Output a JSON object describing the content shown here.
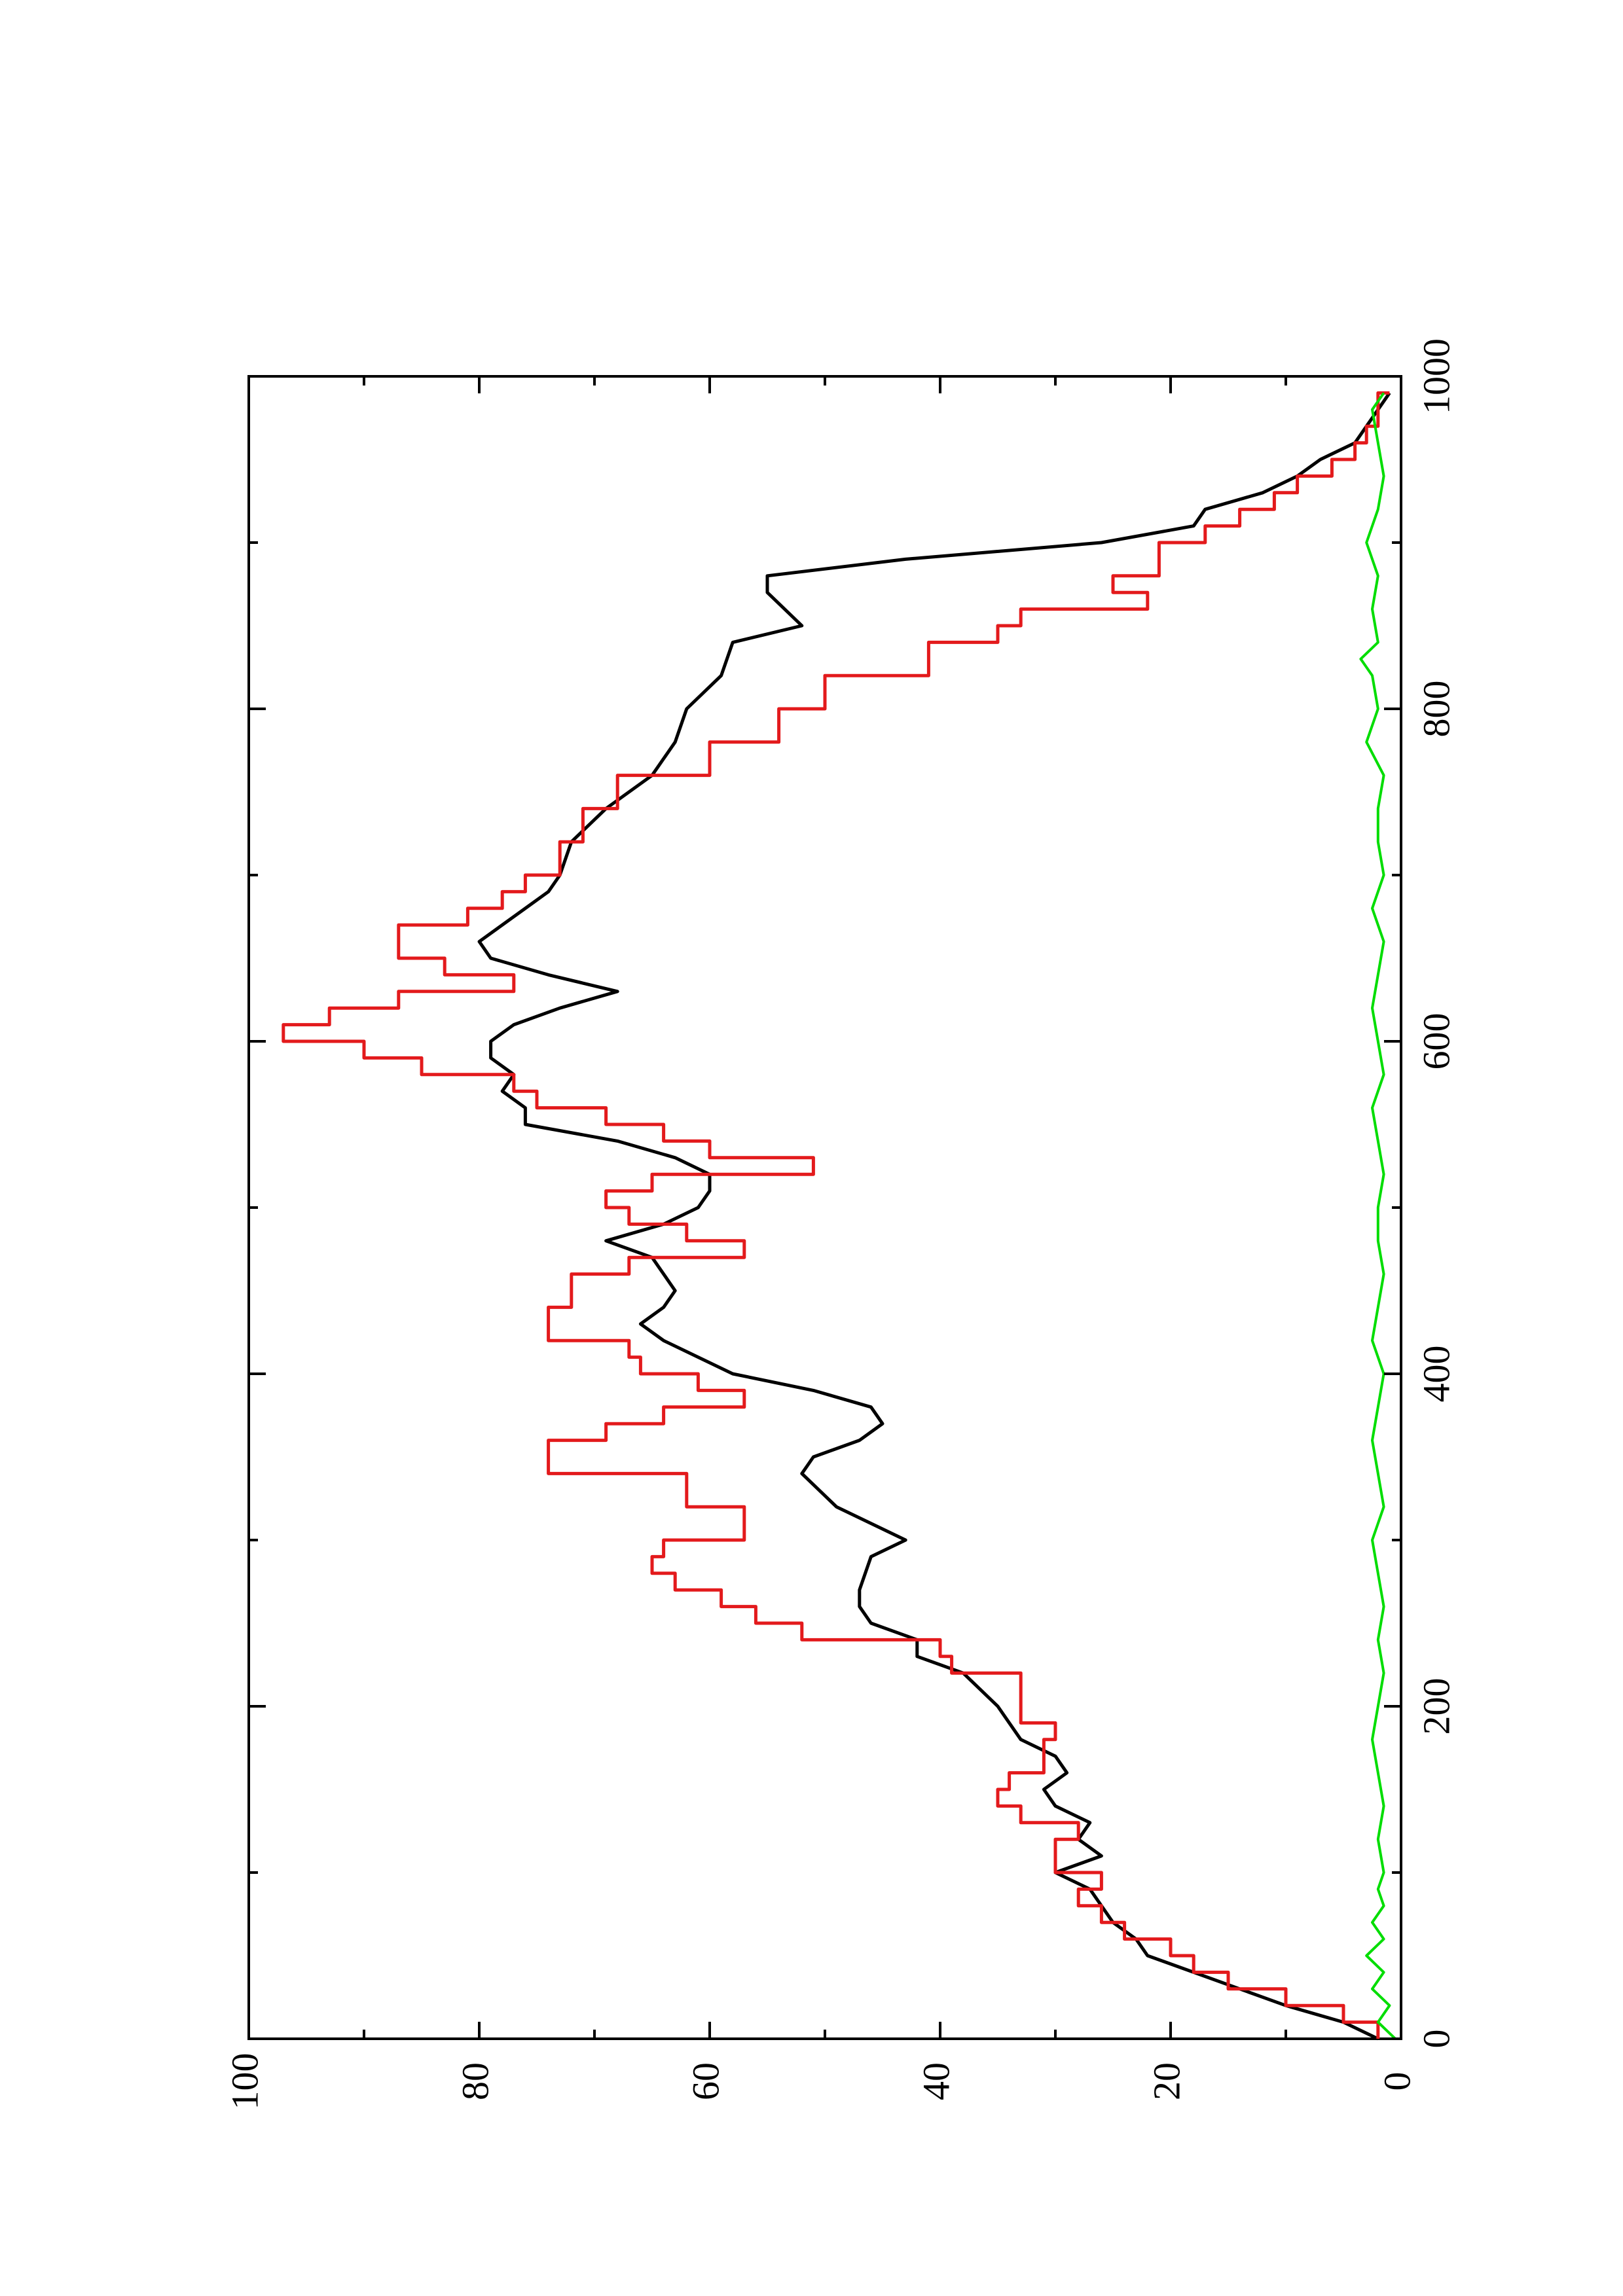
{
  "chart_data": {
    "type": "line",
    "orientation": "rotated-90-ccw",
    "title": "",
    "xlabel": "",
    "ylabel": "",
    "xlim": [
      0,
      1000
    ],
    "ylim": [
      0,
      100
    ],
    "x_ticks": [
      "0",
      "200",
      "400",
      "600",
      "800",
      "1000"
    ],
    "y_ticks": [
      "0",
      "20",
      "40",
      "60",
      "80",
      "100"
    ],
    "grid": false,
    "legend": "none",
    "series": [
      {
        "color": "#000000",
        "x": [
          0,
          10,
          20,
          30,
          40,
          50,
          60,
          70,
          80,
          90,
          100,
          110,
          120,
          130,
          140,
          150,
          160,
          170,
          180,
          190,
          200,
          220,
          230,
          240,
          250,
          260,
          270,
          290,
          300,
          320,
          340,
          350,
          360,
          370,
          380,
          390,
          400,
          410,
          420,
          430,
          440,
          450,
          460,
          470,
          480,
          490,
          500,
          510,
          520,
          530,
          540,
          550,
          560,
          570,
          580,
          590,
          600,
          610,
          620,
          630,
          640,
          650,
          660,
          670,
          680,
          690,
          700,
          720,
          740,
          760,
          780,
          800,
          820,
          840,
          850,
          870,
          880,
          890,
          900,
          910,
          920,
          930,
          940,
          950,
          960,
          970,
          980,
          990
        ],
        "y": [
          2,
          5,
          10,
          14,
          18,
          22,
          23,
          25,
          26,
          27,
          30,
          26,
          28,
          27,
          30,
          31,
          29,
          30,
          33,
          34,
          35,
          38,
          42,
          42,
          46,
          47,
          47,
          46,
          43,
          49,
          52,
          51,
          47,
          45,
          46,
          51,
          58,
          61,
          64,
          66,
          64,
          63,
          64,
          65,
          69,
          64,
          61,
          60,
          60,
          63,
          68,
          76,
          76,
          78,
          77,
          79,
          79,
          77,
          73,
          68,
          74,
          79,
          80,
          78,
          76,
          74,
          73,
          72,
          69,
          65,
          63,
          62,
          59,
          58,
          52,
          55,
          55,
          43,
          26,
          18,
          17,
          12,
          9,
          7,
          4,
          3,
          2,
          1
        ]
      },
      {
        "color": "#e31a1c",
        "x": [
          0,
          10,
          20,
          30,
          40,
          50,
          60,
          70,
          80,
          90,
          100,
          110,
          120,
          130,
          140,
          150,
          160,
          170,
          180,
          190,
          200,
          210,
          220,
          230,
          240,
          250,
          260,
          270,
          280,
          290,
          300,
          320,
          340,
          350,
          360,
          370,
          380,
          390,
          400,
          410,
          420,
          430,
          440,
          450,
          460,
          470,
          480,
          490,
          500,
          510,
          520,
          530,
          540,
          550,
          560,
          570,
          580,
          590,
          600,
          610,
          620,
          630,
          640,
          650,
          660,
          670,
          680,
          690,
          700,
          720,
          740,
          760,
          780,
          800,
          820,
          840,
          850,
          860,
          870,
          880,
          890,
          900,
          910,
          920,
          930,
          940,
          950,
          960,
          970,
          980,
          990
        ],
        "y": [
          2,
          5,
          10,
          15,
          18,
          20,
          24,
          26,
          28,
          26,
          30,
          30,
          28,
          33,
          35,
          34,
          31,
          31,
          30,
          33,
          33,
          33,
          39,
          40,
          52,
          56,
          59,
          63,
          65,
          64,
          57,
          62,
          74,
          74,
          69,
          64,
          57,
          61,
          66,
          67,
          74,
          74,
          72,
          72,
          67,
          57,
          62,
          67,
          69,
          65,
          51,
          60,
          64,
          69,
          75,
          77,
          85,
          90,
          97,
          93,
          87,
          77,
          83,
          87,
          87,
          81,
          78,
          76,
          73,
          71,
          68,
          60,
          54,
          50,
          41,
          35,
          33,
          22,
          25,
          21,
          21,
          17,
          14,
          11,
          9,
          6,
          4,
          3,
          2,
          2,
          1
        ]
      },
      {
        "color": "#00dd00",
        "x": [
          0,
          10,
          20,
          30,
          40,
          50,
          60,
          70,
          80,
          90,
          100,
          120,
          140,
          160,
          180,
          200,
          220,
          240,
          260,
          280,
          300,
          320,
          340,
          360,
          380,
          400,
          420,
          440,
          460,
          480,
          500,
          520,
          540,
          560,
          580,
          600,
          620,
          640,
          660,
          680,
          700,
          720,
          740,
          760,
          780,
          800,
          820,
          830,
          840,
          860,
          880,
          900,
          920,
          940,
          960,
          980,
          990
        ],
        "y": [
          0.5,
          2,
          1,
          2.5,
          1.5,
          3,
          1.5,
          2.5,
          1.5,
          2,
          1.5,
          2,
          1.5,
          2,
          2.5,
          2,
          1.5,
          2,
          1.5,
          2,
          2.5,
          1.5,
          2,
          2.5,
          2,
          1.5,
          2.5,
          2,
          1.5,
          2,
          2,
          1.5,
          2,
          2.5,
          1.5,
          2,
          2.5,
          2,
          1.5,
          2.5,
          1.5,
          2,
          2,
          1.5,
          3,
          2,
          2.5,
          3.5,
          2,
          2.5,
          2,
          3,
          2,
          1.5,
          2,
          2.5,
          1.5
        ]
      }
    ]
  }
}
